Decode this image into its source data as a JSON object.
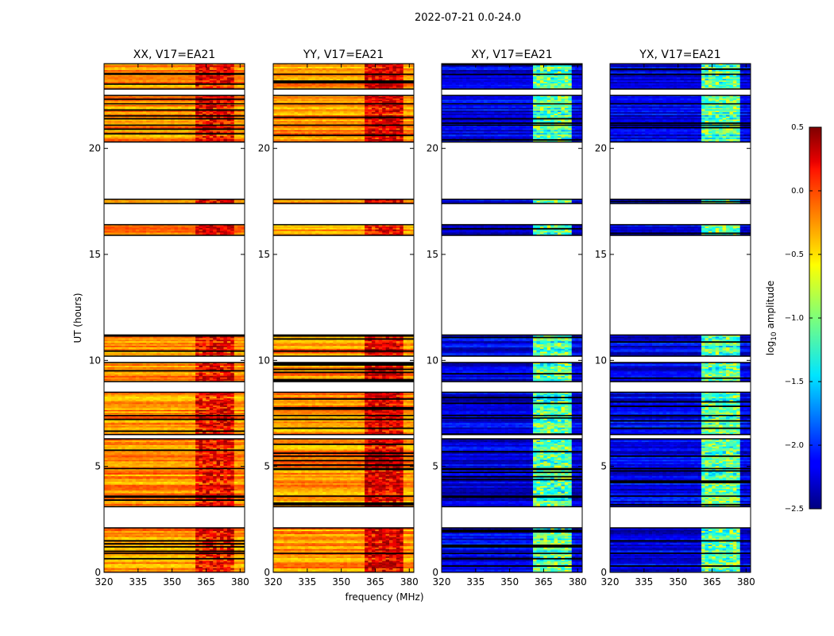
{
  "chart_data": {
    "type": "heatmap",
    "title": "2022-07-21 0.0-24.0",
    "xlabel": "frequency (MHz)",
    "ylabel": "UT (hours)",
    "xlim": [
      320,
      382
    ],
    "ylim": [
      0,
      24
    ],
    "x_ticks": [
      {
        "value": 320,
        "label": "320"
      },
      {
        "value": 335,
        "label": "335"
      },
      {
        "value": 350,
        "label": "350"
      },
      {
        "value": 365,
        "label": "365"
      },
      {
        "value": 380,
        "label": "380"
      }
    ],
    "y_ticks": [
      {
        "value": 0,
        "label": "0"
      },
      {
        "value": 5,
        "label": "5"
      },
      {
        "value": 10,
        "label": "10"
      },
      {
        "value": 15,
        "label": "15"
      },
      {
        "value": 20,
        "label": "20"
      }
    ],
    "panels": [
      {
        "title": "XX, V17=EA21",
        "polarization": "XX",
        "base_level": -0.3,
        "band_level": 0.05
      },
      {
        "title": "YY, V17=EA21",
        "polarization": "YY",
        "base_level": -0.3,
        "band_level": 0.15
      },
      {
        "title": "XY, V17=EA21",
        "polarization": "XY",
        "base_level": -2.2,
        "band_level": -1.2
      },
      {
        "title": "YX, V17=EA21",
        "polarization": "YX",
        "base_level": -2.2,
        "band_level": -1.2
      }
    ],
    "band_freq_range": [
      360,
      378
    ],
    "data_intervals_ut": [
      [
        0.0,
        0.9
      ],
      [
        0.9,
        2.1
      ],
      [
        3.1,
        3.6
      ],
      [
        3.6,
        4.9
      ],
      [
        4.9,
        6.3
      ],
      [
        6.5,
        7.4
      ],
      [
        7.4,
        8.5
      ],
      [
        9.0,
        9.9
      ],
      [
        10.2,
        11.2
      ],
      [
        15.9,
        16.4
      ],
      [
        17.4,
        17.6
      ],
      [
        20.3,
        21.1
      ],
      [
        21.1,
        22.2
      ],
      [
        22.1,
        22.5
      ],
      [
        22.8,
        23.5
      ],
      [
        23.5,
        24.0
      ]
    ],
    "colorbar": {
      "label": "log10 amplitude",
      "range": [
        -2.5,
        0.5
      ],
      "ticks": [
        {
          "value": 0.5,
          "label": "0.5"
        },
        {
          "value": 0.0,
          "label": "0.0"
        },
        {
          "value": -0.5,
          "label": "−0.5"
        },
        {
          "value": -1.0,
          "label": "−1.0"
        },
        {
          "value": -1.5,
          "label": "−1.5"
        },
        {
          "value": -2.0,
          "label": "−2.0"
        },
        {
          "value": -2.5,
          "label": "−2.5"
        }
      ],
      "colormap": "jet"
    }
  }
}
